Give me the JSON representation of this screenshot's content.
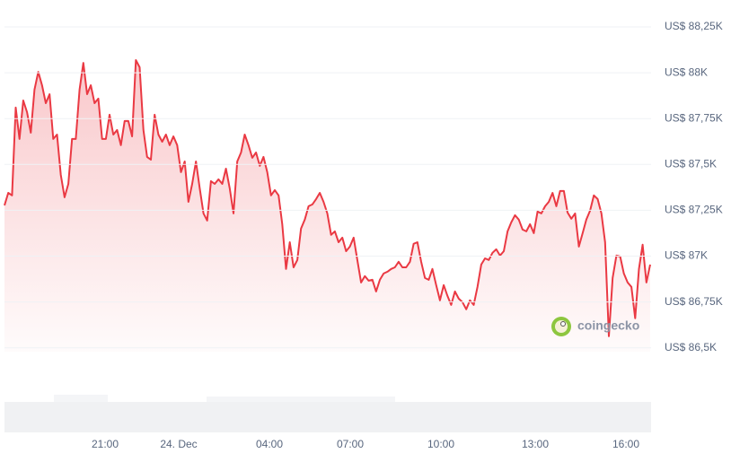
{
  "chart_data": {
    "type": "line",
    "color": "#ea3943",
    "grid": true,
    "watermark": "coingecko",
    "ylim": [
      86500,
      88250
    ],
    "yticks": [
      {
        "value": 86500,
        "label": "US$ 86,5K"
      },
      {
        "value": 86750,
        "label": "US$ 86,75K"
      },
      {
        "value": 87000,
        "label": "US$ 87K"
      },
      {
        "value": 87250,
        "label": "US$ 87,25K"
      },
      {
        "value": 87500,
        "label": "US$ 87,5K"
      },
      {
        "value": 87750,
        "label": "US$ 87,75K"
      },
      {
        "value": 88000,
        "label": "US$ 88K"
      },
      {
        "value": 88250,
        "label": "US$ 88,25K"
      }
    ],
    "xticks": [
      "21:00",
      "24. Dec",
      "04:00",
      "07:00",
      "10:00",
      "13:00",
      "16:00"
    ],
    "values": [
      87277,
      87345,
      87331,
      87810,
      87639,
      87849,
      87785,
      87673,
      87908,
      88005,
      87932,
      87834,
      87883,
      87639,
      87663,
      87443,
      87321,
      87394,
      87639,
      87639,
      87908,
      88054,
      87883,
      87932,
      87834,
      87859,
      87639,
      87639,
      87771,
      87663,
      87688,
      87605,
      87737,
      87737,
      87653,
      88069,
      88030,
      87688,
      87541,
      87526,
      87771,
      87663,
      87624,
      87663,
      87605,
      87653,
      87605,
      87458,
      87516,
      87296,
      87394,
      87516,
      87370,
      87233,
      87194,
      87409,
      87394,
      87419,
      87394,
      87477,
      87370,
      87233,
      87516,
      87565,
      87663,
      87605,
      87536,
      87565,
      87492,
      87541,
      87458,
      87331,
      87360,
      87331,
      87174,
      86930,
      87076,
      86939,
      86979,
      87150,
      87199,
      87272,
      87282,
      87311,
      87345,
      87296,
      87233,
      87116,
      87135,
      87076,
      87101,
      87027,
      87052,
      87101,
      86979,
      86856,
      86891,
      86866,
      86871,
      86807,
      86871,
      86905,
      86915,
      86930,
      86939,
      86969,
      86939,
      86939,
      86969,
      87067,
      87076,
      86969,
      86881,
      86871,
      86930,
      86842,
      86759,
      86842,
      86783,
      86734,
      86807,
      86768,
      86749,
      86710,
      86759,
      86734,
      86832,
      86954,
      86988,
      86979,
      87018,
      87037,
      87003,
      87027,
      87135,
      87184,
      87223,
      87199,
      87145,
      87135,
      87174,
      87125,
      87243,
      87233,
      87272,
      87296,
      87345,
      87272,
      87355,
      87355,
      87238,
      87204,
      87233,
      87052,
      87125,
      87199,
      87248,
      87331,
      87311,
      87233,
      87076,
      86563,
      86881,
      87003,
      86998,
      86905,
      86856,
      86832,
      86661,
      86930,
      87062,
      86856,
      86954
    ]
  }
}
